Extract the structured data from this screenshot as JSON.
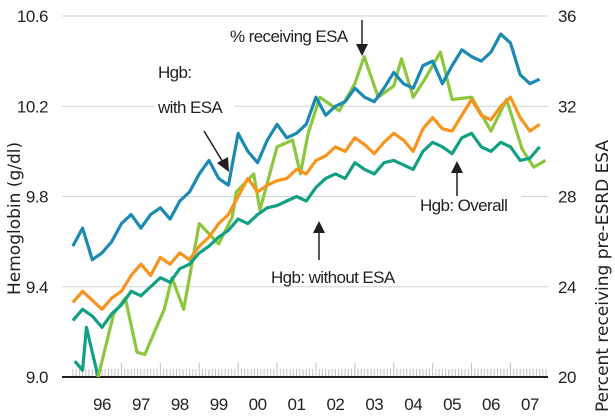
{
  "chart_data": {
    "type": "line",
    "title": "",
    "ylabel": "Hemoglobin (g/dl)",
    "y2label": "Percent receiving pre-ESRD ESA",
    "ylim": [
      9.0,
      10.6
    ],
    "y2lim": [
      20,
      36
    ],
    "yticks": [
      "9.0",
      "9.4",
      "9.8",
      "10.2",
      "10.6"
    ],
    "y2ticks": [
      "20",
      "24",
      "28",
      "32",
      "36"
    ],
    "xticks": [
      "96",
      "97",
      "98",
      "99",
      "00",
      "01",
      "02",
      "03",
      "04",
      "05",
      "06",
      "07"
    ],
    "grid": true,
    "colors": {
      "with_esa": "#1a8ab3",
      "overall": "#f7941d",
      "without_esa": "#12a084",
      "pct_esa": "#8dc63f",
      "pct_esa_early": "#12a084",
      "grid": "#d0d2d3",
      "axis": "#231f20"
    },
    "x": [
      1995.75,
      1996.0,
      1996.25,
      1996.5,
      1996.75,
      1997.0,
      1997.25,
      1997.5,
      1997.75,
      1998.0,
      1998.25,
      1998.5,
      1998.75,
      1999.0,
      1999.25,
      1999.5,
      1999.75,
      2000.0,
      2000.25,
      2000.5,
      2000.75,
      2001.0,
      2001.25,
      2001.5,
      2001.75,
      2002.0,
      2002.25,
      2002.5,
      2002.75,
      2003.0,
      2003.25,
      2003.5,
      2003.75,
      2004.0,
      2004.25,
      2004.5,
      2004.75,
      2005.0,
      2005.25,
      2005.5,
      2005.75,
      2006.0,
      2006.25,
      2006.5,
      2006.75,
      2007.0,
      2007.25,
      2007.5,
      2007.75
    ],
    "series": [
      {
        "name": "Hgb: with ESA",
        "axis": "left",
        "values": [
          9.58,
          9.66,
          9.52,
          9.55,
          9.6,
          9.68,
          9.72,
          9.66,
          9.72,
          9.75,
          9.7,
          9.78,
          9.82,
          9.9,
          9.96,
          9.88,
          9.85,
          10.08,
          10.0,
          9.95,
          10.05,
          10.12,
          10.06,
          10.08,
          10.12,
          10.24,
          10.16,
          10.2,
          10.22,
          10.28,
          10.24,
          10.22,
          10.28,
          10.35,
          10.3,
          10.28,
          10.38,
          10.4,
          10.3,
          10.38,
          10.45,
          10.42,
          10.4,
          10.44,
          10.52,
          10.48,
          10.34,
          10.3,
          10.32
        ]
      },
      {
        "name": "Hgb: Overall",
        "axis": "left",
        "values": [
          9.33,
          9.38,
          9.34,
          9.3,
          9.35,
          9.38,
          9.45,
          9.5,
          9.45,
          9.53,
          9.5,
          9.55,
          9.52,
          9.58,
          9.62,
          9.68,
          9.72,
          9.8,
          9.88,
          9.82,
          9.85,
          9.87,
          9.88,
          9.92,
          9.9,
          9.96,
          9.98,
          10.02,
          10.0,
          10.06,
          10.03,
          9.99,
          10.04,
          10.08,
          10.05,
          10.0,
          10.1,
          10.15,
          10.1,
          10.09,
          10.16,
          10.23,
          10.16,
          10.14,
          10.2,
          10.24,
          10.15,
          10.09,
          10.12
        ]
      },
      {
        "name": "Hgb: without ESA",
        "axis": "left",
        "values": [
          9.25,
          9.3,
          9.27,
          9.22,
          9.28,
          9.32,
          9.38,
          9.36,
          9.4,
          9.44,
          9.42,
          9.48,
          9.5,
          9.55,
          9.58,
          9.62,
          9.65,
          9.7,
          9.68,
          9.72,
          9.75,
          9.76,
          9.78,
          9.8,
          9.78,
          9.84,
          9.88,
          9.9,
          9.88,
          9.95,
          9.92,
          9.9,
          9.95,
          9.96,
          9.94,
          9.92,
          10.0,
          10.04,
          10.02,
          9.99,
          10.06,
          10.08,
          10.02,
          10.0,
          10.04,
          10.02,
          9.96,
          9.97,
          10.02
        ]
      },
      {
        "name": "% receiving ESA",
        "axis": "right",
        "x": [
          1995.8,
          1996.0,
          1996.1,
          1996.4,
          1996.8,
          1997.1,
          1997.4,
          1997.6,
          1998.1,
          1998.3,
          1998.6,
          1999.0,
          1999.5,
          1999.85,
          1999.95,
          2000.4,
          2000.56,
          2001.0,
          2001.4,
          2001.6,
          2001.8,
          2002.1,
          2002.6,
          2003.0,
          2003.24,
          2003.6,
          2004.0,
          2004.2,
          2004.5,
          2004.8,
          2005.2,
          2005.5,
          2006.0,
          2006.5,
          2006.9,
          2007.3,
          2007.6,
          2007.9
        ],
        "values": [
          20.7,
          20.3,
          22.2,
          20.0,
          22.8,
          23.5,
          21.1,
          21.0,
          23.0,
          24.4,
          23.0,
          26.8,
          25.9,
          27.1,
          28.2,
          29.0,
          27.4,
          30.2,
          30.5,
          29.0,
          30.8,
          32.4,
          31.8,
          33.0,
          34.2,
          32.4,
          32.9,
          34.1,
          32.4,
          33.2,
          34.4,
          32.3,
          32.4,
          30.9,
          32.3,
          30.1,
          29.3,
          29.6
        ]
      }
    ],
    "annotations": {
      "pct_esa": "% receiving ESA",
      "with_esa_1": "Hgb:",
      "with_esa_2": "with ESA",
      "overall": "Hgb: Overall",
      "without_esa": "Hgb: without ESA"
    }
  }
}
